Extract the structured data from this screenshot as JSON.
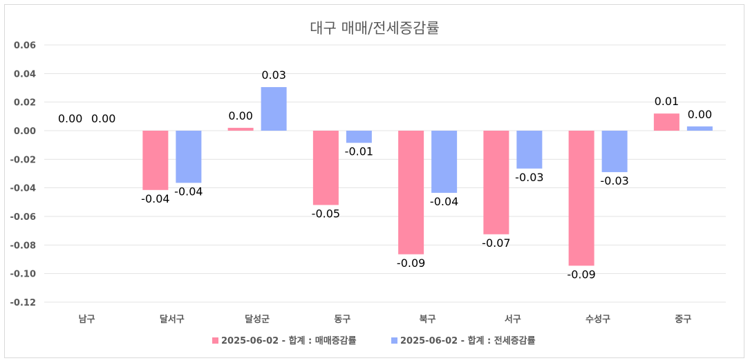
{
  "chart_data": {
    "type": "bar",
    "title": "대구 매매/전세증감률",
    "categories": [
      "남구",
      "달서구",
      "달성군",
      "동구",
      "북구",
      "서구",
      "수성구",
      "중구"
    ],
    "series": [
      {
        "name": "2025-06-02 - 합계 : 매매증감률",
        "color": "#ff8aa5",
        "values": [
          0.0,
          -0.0415,
          0.002,
          -0.052,
          -0.0865,
          -0.0725,
          -0.0945,
          0.012
        ],
        "labels": [
          "0.00",
          "-0.04",
          "0.00",
          "-0.05",
          "-0.09",
          "-0.07",
          "-0.09",
          "0.01"
        ]
      },
      {
        "name": "2025-06-02 - 합계 : 전세증감률",
        "color": "#93aefc",
        "values": [
          0.0,
          -0.0365,
          0.0305,
          -0.0085,
          -0.0435,
          -0.0265,
          -0.029,
          0.003
        ],
        "labels": [
          "0.00",
          "-0.04",
          "0.03",
          "-0.01",
          "-0.04",
          "-0.03",
          "-0.03",
          "0.00"
        ]
      }
    ],
    "ylim": [
      -0.12,
      0.06
    ],
    "yticks": [
      "0.06",
      "0.04",
      "0.02",
      "0.00",
      "-0.02",
      "-0.04",
      "-0.06",
      "-0.08",
      "-0.10",
      "-0.12"
    ],
    "grid": true,
    "legend": "bottom"
  }
}
